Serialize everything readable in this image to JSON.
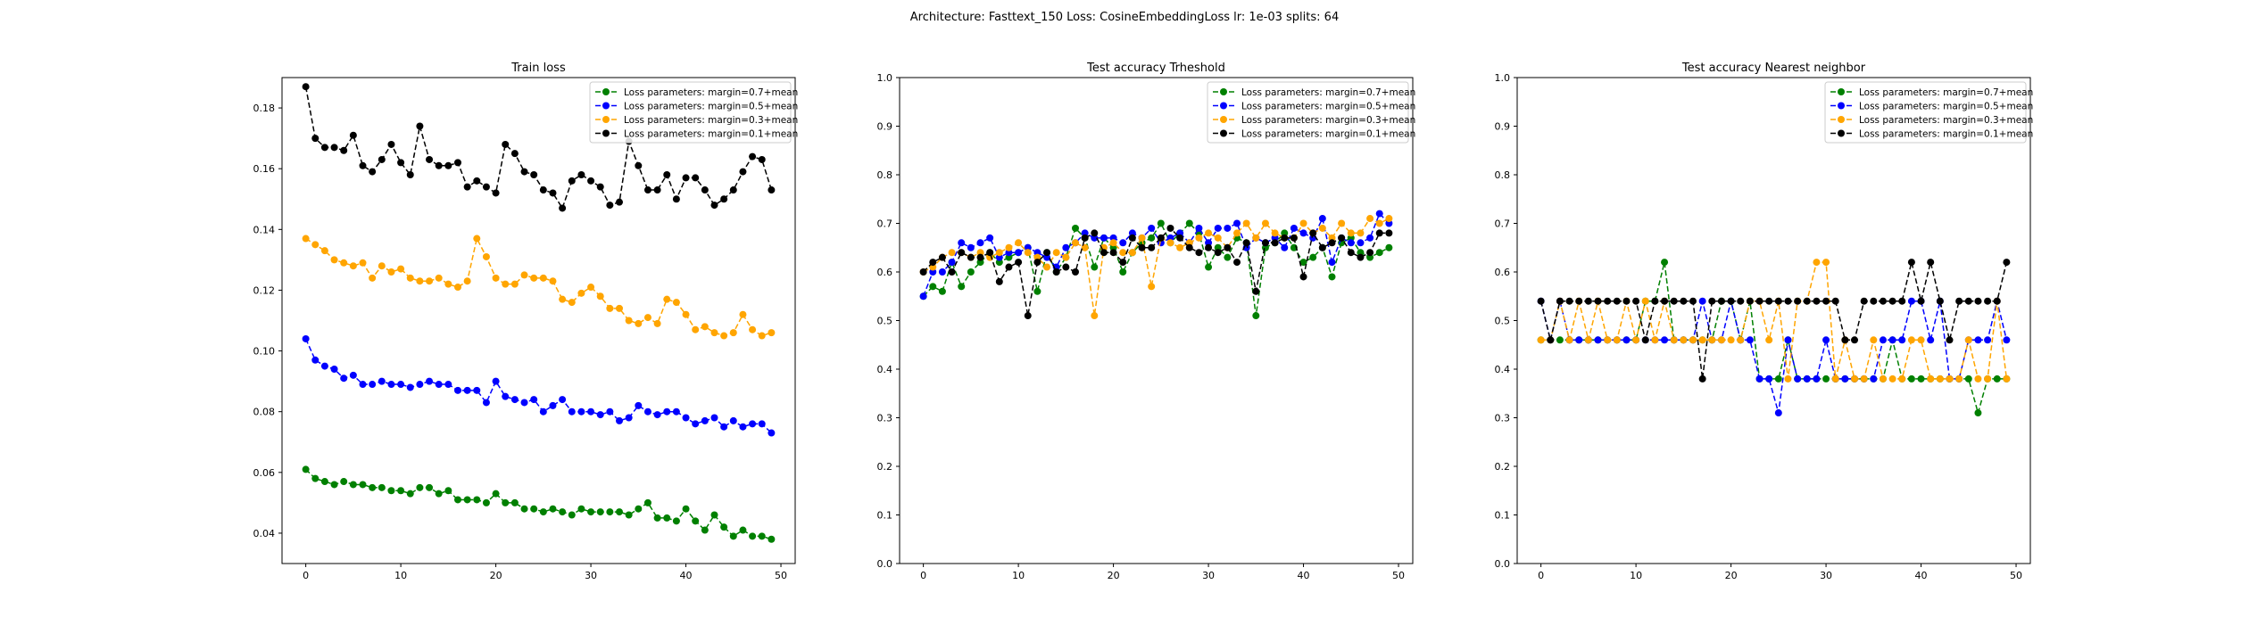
{
  "figure": {
    "suptitle": "Architecture: Fasttext_150 Loss: CosineEmbeddingLoss lr: 1e-03 splits: 64"
  },
  "colors": {
    "green": "#008000",
    "blue": "#0000ff",
    "orange": "#ffa500",
    "black": "#000000"
  },
  "chart_data": [
    {
      "type": "line",
      "title": "Train loss",
      "xlabel": "",
      "ylabel": "",
      "xlim": [
        -2.5,
        51.5
      ],
      "ylim": [
        0.03,
        0.19
      ],
      "xticks": [
        0,
        10,
        20,
        30,
        40,
        50
      ],
      "yticks": [
        0.04,
        0.06,
        0.08,
        0.1,
        0.12,
        0.14,
        0.16,
        0.18
      ],
      "ytick_labels": [
        "0.04",
        "0.06",
        "0.08",
        "0.10",
        "0.12",
        "0.14",
        "0.16",
        "0.18"
      ],
      "grid": false,
      "legend_position": "top-right",
      "x": [
        0,
        1,
        2,
        3,
        4,
        5,
        6,
        7,
        8,
        9,
        10,
        11,
        12,
        13,
        14,
        15,
        16,
        17,
        18,
        19,
        20,
        21,
        22,
        23,
        24,
        25,
        26,
        27,
        28,
        29,
        30,
        31,
        32,
        33,
        34,
        35,
        36,
        37,
        38,
        39,
        40,
        41,
        42,
        43,
        44,
        45,
        46,
        47,
        48,
        49
      ],
      "series": [
        {
          "name": "Loss parameters: margin=0.7+mean",
          "color": "#008000",
          "values": [
            0.061,
            0.058,
            0.057,
            0.056,
            0.057,
            0.056,
            0.056,
            0.055,
            0.055,
            0.054,
            0.054,
            0.053,
            0.055,
            0.055,
            0.053,
            0.054,
            0.051,
            0.051,
            0.051,
            0.05,
            0.053,
            0.05,
            0.05,
            0.048,
            0.048,
            0.047,
            0.048,
            0.047,
            0.046,
            0.048,
            0.047,
            0.047,
            0.047,
            0.047,
            0.046,
            0.048,
            0.05,
            0.045,
            0.045,
            0.044,
            0.048,
            0.044,
            0.041,
            0.046,
            0.042,
            0.039,
            0.041,
            0.039,
            0.039,
            0.038
          ]
        },
        {
          "name": "Loss parameters: margin=0.5+mean",
          "color": "#0000ff",
          "values": [
            0.104,
            0.097,
            0.095,
            0.094,
            0.091,
            0.092,
            0.089,
            0.089,
            0.09,
            0.089,
            0.089,
            0.088,
            0.089,
            0.09,
            0.089,
            0.089,
            0.087,
            0.087,
            0.087,
            0.083,
            0.09,
            0.085,
            0.084,
            0.083,
            0.084,
            0.08,
            0.082,
            0.084,
            0.08,
            0.08,
            0.08,
            0.079,
            0.08,
            0.077,
            0.078,
            0.082,
            0.08,
            0.079,
            0.08,
            0.08,
            0.078,
            0.076,
            0.077,
            0.078,
            0.075,
            0.077,
            0.075,
            0.076,
            0.076,
            0.073
          ]
        },
        {
          "name": "Loss parameters: margin=0.3+mean",
          "color": "#ffa500",
          "values": [
            0.137,
            0.135,
            0.133,
            0.13,
            0.129,
            0.128,
            0.129,
            0.124,
            0.128,
            0.126,
            0.127,
            0.124,
            0.123,
            0.123,
            0.124,
            0.122,
            0.121,
            0.123,
            0.137,
            0.131,
            0.124,
            0.122,
            0.122,
            0.125,
            0.124,
            0.124,
            0.123,
            0.117,
            0.116,
            0.119,
            0.121,
            0.118,
            0.114,
            0.114,
            0.11,
            0.109,
            0.111,
            0.109,
            0.117,
            0.116,
            0.112,
            0.107,
            0.108,
            0.106,
            0.105,
            0.106,
            0.112,
            0.107,
            0.105,
            0.106
          ]
        },
        {
          "name": "Loss parameters: margin=0.1+mean",
          "color": "#000000",
          "values": [
            0.187,
            0.17,
            0.167,
            0.167,
            0.166,
            0.171,
            0.161,
            0.159,
            0.163,
            0.168,
            0.162,
            0.158,
            0.174,
            0.163,
            0.161,
            0.161,
            0.162,
            0.154,
            0.156,
            0.154,
            0.152,
            0.168,
            0.165,
            0.159,
            0.158,
            0.153,
            0.152,
            0.147,
            0.156,
            0.158,
            0.156,
            0.154,
            0.148,
            0.149,
            0.169,
            0.161,
            0.153,
            0.153,
            0.158,
            0.15,
            0.157,
            0.157,
            0.153,
            0.148,
            0.15,
            0.153,
            0.159,
            0.164,
            0.163,
            0.153
          ]
        }
      ]
    },
    {
      "type": "line",
      "title": "Test accuracy Trheshold",
      "xlabel": "",
      "ylabel": "",
      "xlim": [
        -2.5,
        51.5
      ],
      "ylim": [
        0.0,
        1.0
      ],
      "xticks": [
        0,
        10,
        20,
        30,
        40,
        50
      ],
      "yticks": [
        0.0,
        0.1,
        0.2,
        0.3,
        0.4,
        0.5,
        0.6,
        0.7,
        0.8,
        0.9,
        1.0
      ],
      "ytick_labels": [
        "0.0",
        "0.1",
        "0.2",
        "0.3",
        "0.4",
        "0.5",
        "0.6",
        "0.7",
        "0.8",
        "0.9",
        "1.0"
      ],
      "grid": false,
      "legend_position": "top-right",
      "x": [
        0,
        1,
        2,
        3,
        4,
        5,
        6,
        7,
        8,
        9,
        10,
        11,
        12,
        13,
        14,
        15,
        16,
        17,
        18,
        19,
        20,
        21,
        22,
        23,
        24,
        25,
        26,
        27,
        28,
        29,
        30,
        31,
        32,
        33,
        34,
        35,
        36,
        37,
        38,
        39,
        40,
        41,
        42,
        43,
        44,
        45,
        46,
        47,
        48,
        49
      ],
      "series": [
        {
          "name": "Loss parameters: margin=0.7+mean",
          "color": "#008000",
          "values": [
            0.55,
            0.57,
            0.56,
            0.62,
            0.57,
            0.6,
            0.62,
            0.64,
            0.62,
            0.63,
            0.64,
            0.65,
            0.56,
            0.64,
            0.6,
            0.63,
            0.69,
            0.67,
            0.61,
            0.67,
            0.65,
            0.6,
            0.64,
            0.66,
            0.67,
            0.7,
            0.66,
            0.68,
            0.7,
            0.68,
            0.61,
            0.65,
            0.63,
            0.67,
            0.66,
            0.51,
            0.65,
            0.66,
            0.68,
            0.65,
            0.62,
            0.63,
            0.65,
            0.59,
            0.66,
            0.67,
            0.64,
            0.63,
            0.64,
            0.65
          ]
        },
        {
          "name": "Loss parameters: margin=0.5+mean",
          "color": "#0000ff",
          "values": [
            0.55,
            0.6,
            0.6,
            0.62,
            0.66,
            0.65,
            0.66,
            0.67,
            0.63,
            0.64,
            0.64,
            0.65,
            0.64,
            0.63,
            0.61,
            0.65,
            0.66,
            0.68,
            0.67,
            0.67,
            0.67,
            0.66,
            0.68,
            0.67,
            0.69,
            0.66,
            0.67,
            0.68,
            0.66,
            0.69,
            0.66,
            0.69,
            0.69,
            0.7,
            0.65,
            0.67,
            0.66,
            0.67,
            0.65,
            0.69,
            0.68,
            0.67,
            0.71,
            0.62,
            0.67,
            0.66,
            0.66,
            0.67,
            0.72,
            0.7
          ]
        },
        {
          "name": "Loss parameters: margin=0.3+mean",
          "color": "#ffa500",
          "values": [
            0.6,
            0.61,
            0.63,
            0.64,
            0.64,
            0.63,
            0.64,
            0.63,
            0.64,
            0.65,
            0.66,
            0.64,
            0.63,
            0.61,
            0.64,
            0.63,
            0.66,
            0.65,
            0.51,
            0.65,
            0.66,
            0.64,
            0.64,
            0.67,
            0.57,
            0.67,
            0.66,
            0.65,
            0.66,
            0.67,
            0.68,
            0.67,
            0.65,
            0.68,
            0.7,
            0.67,
            0.7,
            0.68,
            0.67,
            0.67,
            0.7,
            0.68,
            0.69,
            0.67,
            0.7,
            0.68,
            0.68,
            0.71,
            0.7,
            0.71
          ]
        },
        {
          "name": "Loss parameters: margin=0.1+mean",
          "color": "#000000",
          "values": [
            0.6,
            0.62,
            0.63,
            0.6,
            0.64,
            0.63,
            0.63,
            0.64,
            0.58,
            0.61,
            0.62,
            0.51,
            0.62,
            0.64,
            0.6,
            0.61,
            0.6,
            0.67,
            0.68,
            0.64,
            0.64,
            0.62,
            0.67,
            0.65,
            0.65,
            0.67,
            0.69,
            0.67,
            0.65,
            0.64,
            0.65,
            0.64,
            0.65,
            0.62,
            0.66,
            0.56,
            0.66,
            0.66,
            0.67,
            0.67,
            0.59,
            0.68,
            0.65,
            0.66,
            0.67,
            0.64,
            0.63,
            0.64,
            0.68,
            0.68
          ]
        }
      ]
    },
    {
      "type": "line",
      "title": "Test accuracy Nearest neighbor",
      "xlabel": "",
      "ylabel": "",
      "xlim": [
        -2.5,
        51.5
      ],
      "ylim": [
        0.0,
        1.0
      ],
      "xticks": [
        0,
        10,
        20,
        30,
        40,
        50
      ],
      "yticks": [
        0.0,
        0.1,
        0.2,
        0.3,
        0.4,
        0.5,
        0.6,
        0.7,
        0.8,
        0.9,
        1.0
      ],
      "ytick_labels": [
        "0.0",
        "0.1",
        "0.2",
        "0.3",
        "0.4",
        "0.5",
        "0.6",
        "0.7",
        "0.8",
        "0.9",
        "1.0"
      ],
      "grid": false,
      "legend_position": "top-right",
      "x": [
        0,
        1,
        2,
        3,
        4,
        5,
        6,
        7,
        8,
        9,
        10,
        11,
        12,
        13,
        14,
        15,
        16,
        17,
        18,
        19,
        20,
        21,
        22,
        23,
        24,
        25,
        26,
        27,
        28,
        29,
        30,
        31,
        32,
        33,
        34,
        35,
        36,
        37,
        38,
        39,
        40,
        41,
        42,
        43,
        44,
        45,
        46,
        47,
        48,
        49
      ],
      "series": [
        {
          "name": "Loss parameters: margin=0.7+mean",
          "color": "#008000",
          "values": [
            0.46,
            0.46,
            0.46,
            0.46,
            0.46,
            0.46,
            0.46,
            0.46,
            0.46,
            0.46,
            0.46,
            0.54,
            0.54,
            0.62,
            0.46,
            0.46,
            0.46,
            0.46,
            0.46,
            0.54,
            0.54,
            0.46,
            0.54,
            0.38,
            0.38,
            0.38,
            0.46,
            0.38,
            0.38,
            0.38,
            0.38,
            0.38,
            0.38,
            0.38,
            0.38,
            0.38,
            0.38,
            0.46,
            0.38,
            0.38,
            0.38,
            0.38,
            0.38,
            0.38,
            0.38,
            0.38,
            0.31,
            0.38,
            0.38,
            0.38
          ]
        },
        {
          "name": "Loss parameters: margin=0.5+mean",
          "color": "#0000ff",
          "values": [
            0.54,
            0.46,
            0.54,
            0.46,
            0.46,
            0.46,
            0.46,
            0.46,
            0.46,
            0.46,
            0.46,
            0.46,
            0.46,
            0.46,
            0.46,
            0.46,
            0.46,
            0.54,
            0.46,
            0.46,
            0.54,
            0.46,
            0.46,
            0.38,
            0.38,
            0.31,
            0.46,
            0.38,
            0.38,
            0.38,
            0.46,
            0.38,
            0.38,
            0.38,
            0.38,
            0.38,
            0.46,
            0.46,
            0.46,
            0.54,
            0.54,
            0.46,
            0.54,
            0.38,
            0.38,
            0.46,
            0.46,
            0.46,
            0.54,
            0.46
          ]
        },
        {
          "name": "Loss parameters: margin=0.3+mean",
          "color": "#ffa500",
          "values": [
            0.46,
            0.46,
            0.54,
            0.46,
            0.54,
            0.46,
            0.54,
            0.46,
            0.46,
            0.54,
            0.46,
            0.54,
            0.46,
            0.54,
            0.46,
            0.46,
            0.46,
            0.46,
            0.46,
            0.46,
            0.46,
            0.46,
            0.54,
            0.54,
            0.46,
            0.54,
            0.38,
            0.54,
            0.54,
            0.62,
            0.62,
            0.38,
            0.46,
            0.38,
            0.38,
            0.46,
            0.38,
            0.38,
            0.38,
            0.46,
            0.46,
            0.38,
            0.38,
            0.38,
            0.38,
            0.46,
            0.38,
            0.38,
            0.54,
            0.38
          ]
        },
        {
          "name": "Loss parameters: margin=0.1+mean",
          "color": "#000000",
          "values": [
            0.54,
            0.46,
            0.54,
            0.54,
            0.54,
            0.54,
            0.54,
            0.54,
            0.54,
            0.54,
            0.54,
            0.46,
            0.54,
            0.54,
            0.54,
            0.54,
            0.54,
            0.38,
            0.54,
            0.54,
            0.54,
            0.54,
            0.54,
            0.54,
            0.54,
            0.54,
            0.54,
            0.54,
            0.54,
            0.54,
            0.54,
            0.54,
            0.46,
            0.46,
            0.54,
            0.54,
            0.54,
            0.54,
            0.54,
            0.62,
            0.54,
            0.62,
            0.54,
            0.46,
            0.54,
            0.54,
            0.54,
            0.54,
            0.54,
            0.62
          ]
        }
      ]
    }
  ]
}
